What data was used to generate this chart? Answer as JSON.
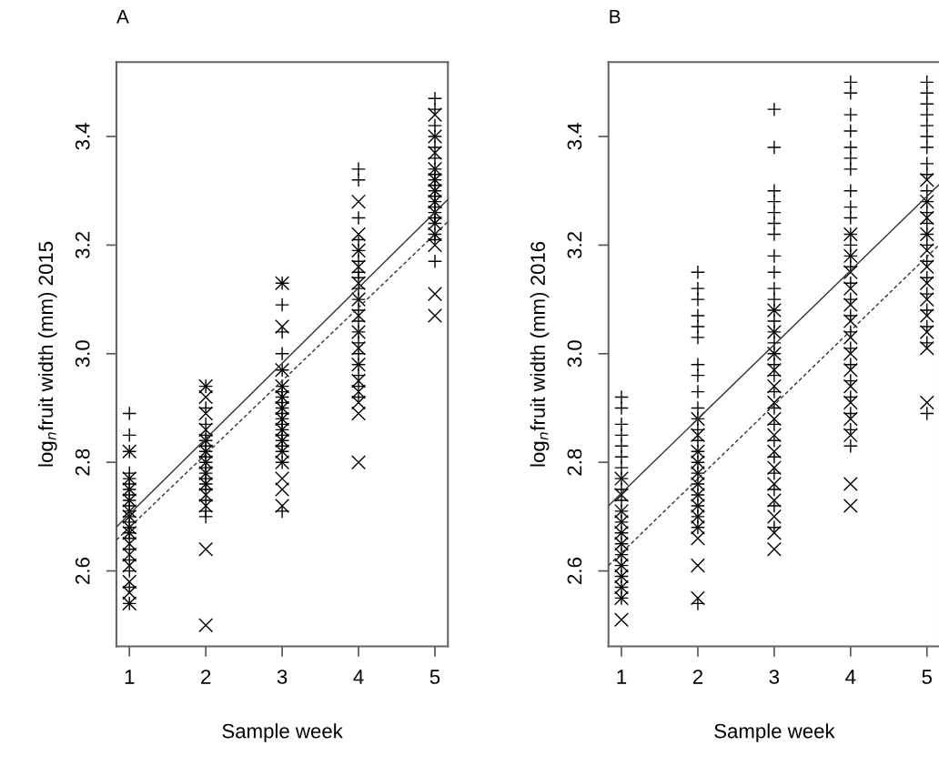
{
  "chart_data": [
    {
      "type": "scatter",
      "title": "A",
      "xlabel": "Sample week",
      "ylabel": "log$_{n}$fruit width (mm) 2015",
      "xlim": [
        0.83,
        5.17
      ],
      "ylim": [
        2.461,
        3.537
      ],
      "xticks": [
        1,
        2,
        3,
        4,
        5
      ],
      "yticks": [
        {
          "value": 2.6,
          "label": "2.6"
        },
        {
          "value": 2.8,
          "label": "2.8"
        },
        {
          "value": 3.0,
          "label": "3.0"
        },
        {
          "value": 3.2,
          "label": "3.2"
        },
        {
          "value": 3.4,
          "label": "3.4"
        }
      ],
      "grid": false,
      "legend": false,
      "series": [
        {
          "marker": "cross",
          "color": "#000000",
          "x": [
            1,
            1,
            1,
            1,
            1,
            1,
            1,
            1,
            1,
            1,
            1,
            1,
            1,
            1,
            1,
            1,
            1,
            1,
            1,
            1,
            1,
            2,
            2,
            2,
            2,
            2,
            2,
            2,
            2,
            2,
            2,
            2,
            2,
            2,
            2,
            2,
            2,
            2,
            3,
            3,
            3,
            3,
            3,
            3,
            3,
            3,
            3,
            3,
            3,
            3,
            3,
            3,
            3,
            3,
            3,
            3,
            3,
            3,
            4,
            4,
            4,
            4,
            4,
            4,
            4,
            4,
            4,
            4,
            4,
            4,
            4,
            4,
            4,
            4,
            4,
            4,
            4,
            5,
            5,
            5,
            5,
            5,
            5,
            5,
            5,
            5,
            5,
            5,
            5,
            5,
            5,
            5,
            5,
            5,
            5,
            5,
            5
          ],
          "values": [
            2.89,
            2.85,
            2.82,
            2.78,
            2.77,
            2.76,
            2.75,
            2.74,
            2.73,
            2.72,
            2.71,
            2.7,
            2.69,
            2.68,
            2.67,
            2.66,
            2.64,
            2.62,
            2.6,
            2.57,
            2.54,
            2.94,
            2.9,
            2.87,
            2.85,
            2.84,
            2.83,
            2.82,
            2.81,
            2.8,
            2.79,
            2.78,
            2.77,
            2.76,
            2.75,
            2.73,
            2.71,
            2.7,
            3.13,
            3.09,
            3.04,
            3.0,
            2.97,
            2.94,
            2.93,
            2.92,
            2.91,
            2.9,
            2.89,
            2.88,
            2.87,
            2.86,
            2.85,
            2.84,
            2.83,
            2.82,
            2.8,
            2.71,
            3.34,
            3.32,
            3.25,
            3.21,
            3.19,
            3.17,
            3.15,
            3.14,
            3.12,
            3.1,
            3.08,
            3.06,
            3.04,
            3.02,
            3.0,
            2.98,
            2.96,
            2.94,
            2.92,
            3.47,
            3.45,
            3.42,
            3.4,
            3.38,
            3.36,
            3.34,
            3.33,
            3.32,
            3.31,
            3.3,
            3.29,
            3.28,
            3.27,
            3.26,
            3.25,
            3.24,
            3.22,
            3.21,
            3.17
          ]
        },
        {
          "marker": "x",
          "color": "#000000",
          "x": [
            1,
            1,
            1,
            1,
            1,
            1,
            1,
            1,
            1,
            1,
            1,
            1,
            1,
            1,
            2,
            2,
            2,
            2,
            2,
            2,
            2,
            2,
            2,
            2,
            2,
            2,
            2,
            3,
            3,
            3,
            3,
            3,
            3,
            3,
            3,
            3,
            3,
            3,
            3,
            3,
            3,
            4,
            4,
            4,
            4,
            4,
            4,
            4,
            4,
            4,
            4,
            4,
            4,
            4,
            4,
            4,
            5,
            5,
            5,
            5,
            5,
            5,
            5,
            5,
            5,
            5,
            5,
            5,
            5
          ],
          "values": [
            2.82,
            2.77,
            2.75,
            2.73,
            2.71,
            2.7,
            2.68,
            2.67,
            2.65,
            2.63,
            2.61,
            2.58,
            2.56,
            2.54,
            2.94,
            2.92,
            2.89,
            2.86,
            2.84,
            2.82,
            2.8,
            2.78,
            2.76,
            2.74,
            2.72,
            2.64,
            2.5,
            3.13,
            3.05,
            2.97,
            2.94,
            2.92,
            2.9,
            2.88,
            2.86,
            2.84,
            2.82,
            2.8,
            2.77,
            2.75,
            2.72,
            3.28,
            3.22,
            3.19,
            3.16,
            3.13,
            3.1,
            3.07,
            3.04,
            3.01,
            2.98,
            2.95,
            2.93,
            2.91,
            2.89,
            2.8,
            3.44,
            3.4,
            3.37,
            3.34,
            3.32,
            3.3,
            3.28,
            3.26,
            3.24,
            3.22,
            3.2,
            3.11,
            3.07
          ]
        },
        {
          "type": "line",
          "line_style": "solid",
          "color": "#333333",
          "x": [
            0.83,
            5.17
          ],
          "values": [
            2.681,
            3.284
          ]
        },
        {
          "type": "line",
          "line_style": "dashed",
          "color": "#333333",
          "x": [
            0.83,
            5.17
          ],
          "values": [
            2.657,
            3.243
          ]
        }
      ]
    },
    {
      "type": "scatter",
      "title": "B",
      "xlabel": "Sample week",
      "ylabel": "log$_{n}$fruit width (mm) 2016",
      "xlim": [
        0.83,
        5.17
      ],
      "ylim": [
        2.461,
        3.537
      ],
      "xticks": [
        1,
        2,
        3,
        4,
        5
      ],
      "yticks": [
        {
          "value": 2.6,
          "label": "2.6"
        },
        {
          "value": 2.8,
          "label": "2.8"
        },
        {
          "value": 3.0,
          "label": "3.0"
        },
        {
          "value": 3.2,
          "label": "3.2"
        },
        {
          "value": 3.4,
          "label": "3.4"
        }
      ],
      "grid": false,
      "legend": false,
      "series": [
        {
          "marker": "cross",
          "color": "#000000",
          "x": [
            1,
            1,
            1,
            1,
            1,
            1,
            1,
            1,
            1,
            1,
            1,
            1,
            1,
            1,
            1,
            1,
            1,
            1,
            1,
            2,
            2,
            2,
            2,
            2,
            2,
            2,
            2,
            2,
            2,
            2,
            2,
            2,
            2,
            2,
            2,
            2,
            2,
            2,
            2,
            2,
            2,
            3,
            3,
            3,
            3,
            3,
            3,
            3,
            3,
            3,
            3,
            3,
            3,
            3,
            3,
            3,
            3,
            3,
            3,
            3,
            3,
            3,
            3,
            3,
            3,
            3,
            3,
            3,
            4,
            4,
            4,
            4,
            4,
            4,
            4,
            4,
            4,
            4,
            4,
            4,
            4,
            4,
            4,
            4,
            4,
            4,
            4,
            4,
            4,
            4,
            4,
            4,
            4,
            5,
            5,
            5,
            5,
            5,
            5,
            5,
            5,
            5,
            5,
            5,
            5,
            5,
            5,
            5,
            5,
            5,
            5,
            5,
            5,
            5,
            5
          ],
          "values": [
            2.92,
            2.9,
            2.87,
            2.85,
            2.83,
            2.81,
            2.79,
            2.77,
            2.75,
            2.73,
            2.71,
            2.69,
            2.67,
            2.65,
            2.63,
            2.61,
            2.59,
            2.57,
            2.55,
            3.15,
            3.12,
            3.1,
            3.07,
            3.05,
            3.03,
            2.98,
            2.96,
            2.93,
            2.9,
            2.88,
            2.86,
            2.84,
            2.82,
            2.8,
            2.78,
            2.76,
            2.74,
            2.72,
            2.7,
            2.68,
            2.54,
            3.45,
            3.38,
            3.3,
            3.28,
            3.26,
            3.24,
            3.22,
            3.18,
            3.15,
            3.12,
            3.1,
            3.08,
            3.06,
            3.04,
            3.02,
            3.0,
            2.98,
            2.96,
            2.93,
            2.9,
            2.87,
            2.84,
            2.81,
            2.78,
            2.75,
            2.72,
            2.68,
            3.5,
            3.48,
            3.44,
            3.41,
            3.38,
            3.36,
            3.34,
            3.3,
            3.27,
            3.25,
            3.22,
            3.2,
            3.18,
            3.16,
            3.13,
            3.1,
            3.07,
            3.04,
            3.01,
            2.98,
            2.95,
            2.92,
            2.89,
            2.86,
            2.83,
            3.5,
            3.48,
            3.46,
            3.44,
            3.42,
            3.4,
            3.38,
            3.35,
            3.33,
            3.3,
            3.28,
            3.26,
            3.24,
            3.22,
            3.2,
            3.17,
            3.14,
            3.11,
            3.08,
            3.05,
            3.02,
            2.89
          ]
        },
        {
          "marker": "x",
          "color": "#000000",
          "x": [
            1,
            1,
            1,
            1,
            1,
            1,
            1,
            1,
            1,
            1,
            1,
            1,
            2,
            2,
            2,
            2,
            2,
            2,
            2,
            2,
            2,
            2,
            2,
            2,
            2,
            3,
            3,
            3,
            3,
            3,
            3,
            3,
            3,
            3,
            3,
            3,
            3,
            3,
            3,
            3,
            4,
            4,
            4,
            4,
            4,
            4,
            4,
            4,
            4,
            4,
            4,
            4,
            4,
            4,
            4,
            5,
            5,
            5,
            5,
            5,
            5,
            5,
            5,
            5,
            5,
            5,
            5
          ],
          "values": [
            2.77,
            2.74,
            2.71,
            2.69,
            2.67,
            2.65,
            2.63,
            2.61,
            2.59,
            2.57,
            2.55,
            2.51,
            2.88,
            2.85,
            2.82,
            2.8,
            2.78,
            2.76,
            2.74,
            2.72,
            2.7,
            2.68,
            2.66,
            2.61,
            2.55,
            3.08,
            3.04,
            3.0,
            2.97,
            2.94,
            2.91,
            2.88,
            2.85,
            2.82,
            2.79,
            2.76,
            2.73,
            2.7,
            2.67,
            2.64,
            3.22,
            3.18,
            3.15,
            3.12,
            3.09,
            3.06,
            3.03,
            3.0,
            2.97,
            2.94,
            2.91,
            2.88,
            2.85,
            2.76,
            2.72,
            3.32,
            3.28,
            3.25,
            3.22,
            3.19,
            3.16,
            3.13,
            3.1,
            3.07,
            3.04,
            3.01,
            2.91
          ]
        },
        {
          "type": "line",
          "line_style": "solid",
          "color": "#333333",
          "x": [
            0.83,
            5.17
          ],
          "values": [
            2.72,
            3.313
          ]
        },
        {
          "type": "line",
          "line_style": "dashed",
          "color": "#333333",
          "x": [
            0.83,
            5.17
          ],
          "values": [
            2.61,
            3.202
          ]
        }
      ]
    }
  ]
}
